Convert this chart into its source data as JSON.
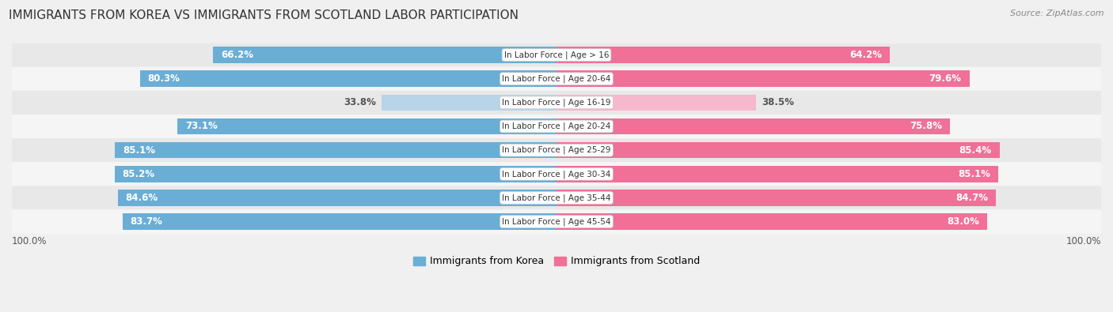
{
  "title": "IMMIGRANTS FROM KOREA VS IMMIGRANTS FROM SCOTLAND LABOR PARTICIPATION",
  "source": "Source: ZipAtlas.com",
  "categories": [
    "In Labor Force | Age > 16",
    "In Labor Force | Age 20-64",
    "In Labor Force | Age 16-19",
    "In Labor Force | Age 20-24",
    "In Labor Force | Age 25-29",
    "In Labor Force | Age 30-34",
    "In Labor Force | Age 35-44",
    "In Labor Force | Age 45-54"
  ],
  "korea_values": [
    66.2,
    80.3,
    33.8,
    73.1,
    85.1,
    85.2,
    84.6,
    83.7
  ],
  "scotland_values": [
    64.2,
    79.6,
    38.5,
    75.8,
    85.4,
    85.1,
    84.7,
    83.0
  ],
  "korea_color": "#6aaed6",
  "korea_color_light": "#b8d4e8",
  "scotland_color": "#f07098",
  "scotland_color_light": "#f5b8cc",
  "row_bg_colors": [
    "#e8e8e8",
    "#f5f5f5"
  ],
  "bar_row_bg": "#e0e0e0",
  "label_fontsize": 8.5,
  "title_fontsize": 11,
  "max_val": 100.0,
  "legend_korea": "Immigrants from Korea",
  "legend_scotland": "Immigrants from Scotland",
  "threshold": 50
}
